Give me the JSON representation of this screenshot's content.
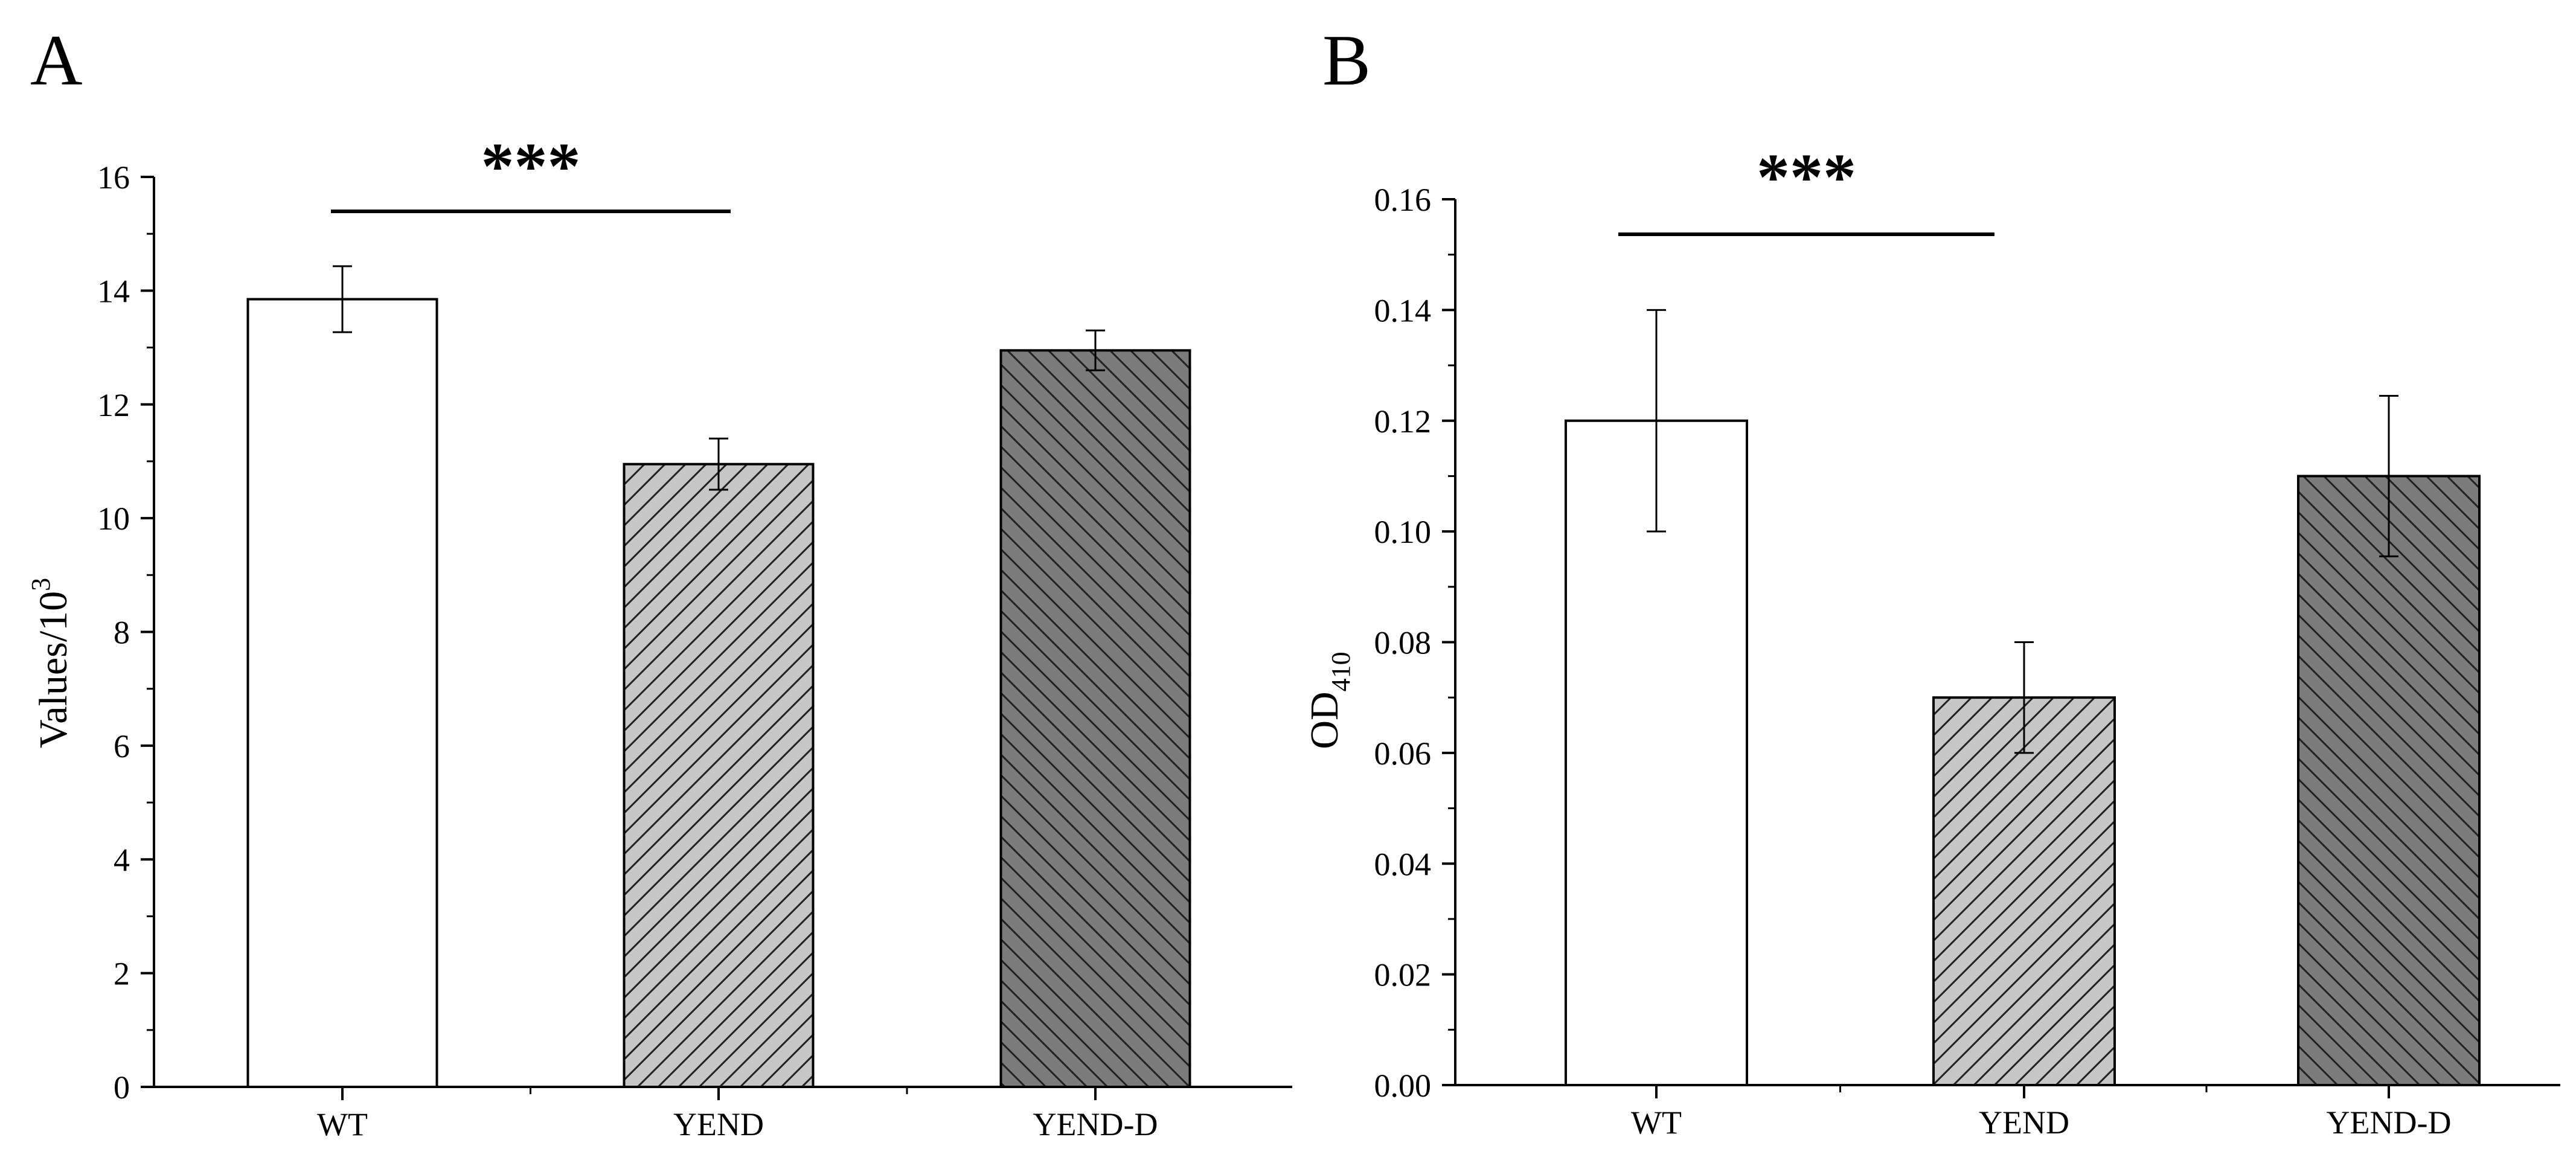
{
  "chart_data": [
    {
      "type": "bar",
      "panel_label": "A",
      "categories": [
        "WT",
        "YEND",
        "YEND-D"
      ],
      "values": [
        13.85,
        10.95,
        12.95
      ],
      "errors": [
        0.58,
        0.45,
        0.35
      ],
      "title": "",
      "xlabel": "",
      "ylabel": "Values/10",
      "ylabel_sup": "3",
      "ylim": [
        0,
        16
      ],
      "yticks": [
        "0",
        "2",
        "4",
        "6",
        "8",
        "10",
        "12",
        "14",
        "16"
      ],
      "bar_styles": [
        "white",
        "light-gray-hatch",
        "dark-gray-hatch"
      ],
      "significance": {
        "label": "***",
        "from": "WT",
        "to": "YEND"
      },
      "grid": false,
      "legend": "none"
    },
    {
      "type": "bar",
      "panel_label": "B",
      "categories": [
        "WT",
        "YEND",
        "YEND-D"
      ],
      "values": [
        0.12,
        0.07,
        0.11
      ],
      "errors": [
        0.02,
        0.01,
        0.0145
      ],
      "title": "",
      "xlabel": "",
      "ylabel": "OD",
      "ylabel_sub": "410",
      "ylim": [
        0,
        0.16
      ],
      "yticks": [
        "0.00",
        "0.02",
        "0.04",
        "0.06",
        "0.08",
        "0.10",
        "0.12",
        "0.14",
        "0.16"
      ],
      "bar_styles": [
        "white",
        "light-gray-hatch",
        "dark-gray-hatch"
      ],
      "significance": {
        "label": "***",
        "from": "WT",
        "to": "YEND"
      },
      "grid": false,
      "legend": "none"
    }
  ],
  "colors": {
    "bar_white": "#ffffff",
    "bar_light": "#c6c6c6",
    "bar_dark": "#7b7b7b",
    "hatch": "#222222",
    "axis": "#000000"
  }
}
